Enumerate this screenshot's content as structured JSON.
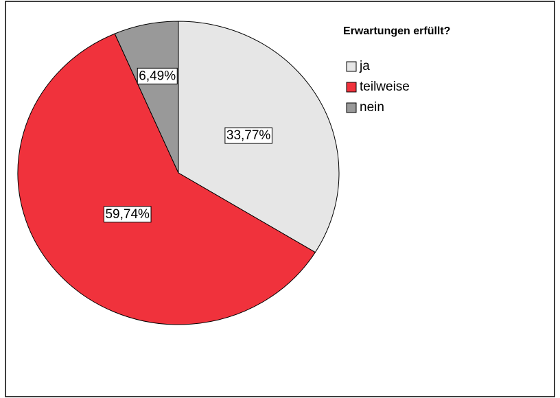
{
  "chart_data": {
    "type": "pie",
    "legend_title": "Erwartungen erfüllt?",
    "categories": [
      "ja",
      "teilweise",
      "nein"
    ],
    "values": [
      33.77,
      59.74,
      6.49
    ],
    "value_labels": [
      "33,77%",
      "59,74%",
      "6,49%"
    ],
    "colors": [
      "#e6e6e6",
      "#f0323c",
      "#999999"
    ],
    "legend": "top-right"
  }
}
